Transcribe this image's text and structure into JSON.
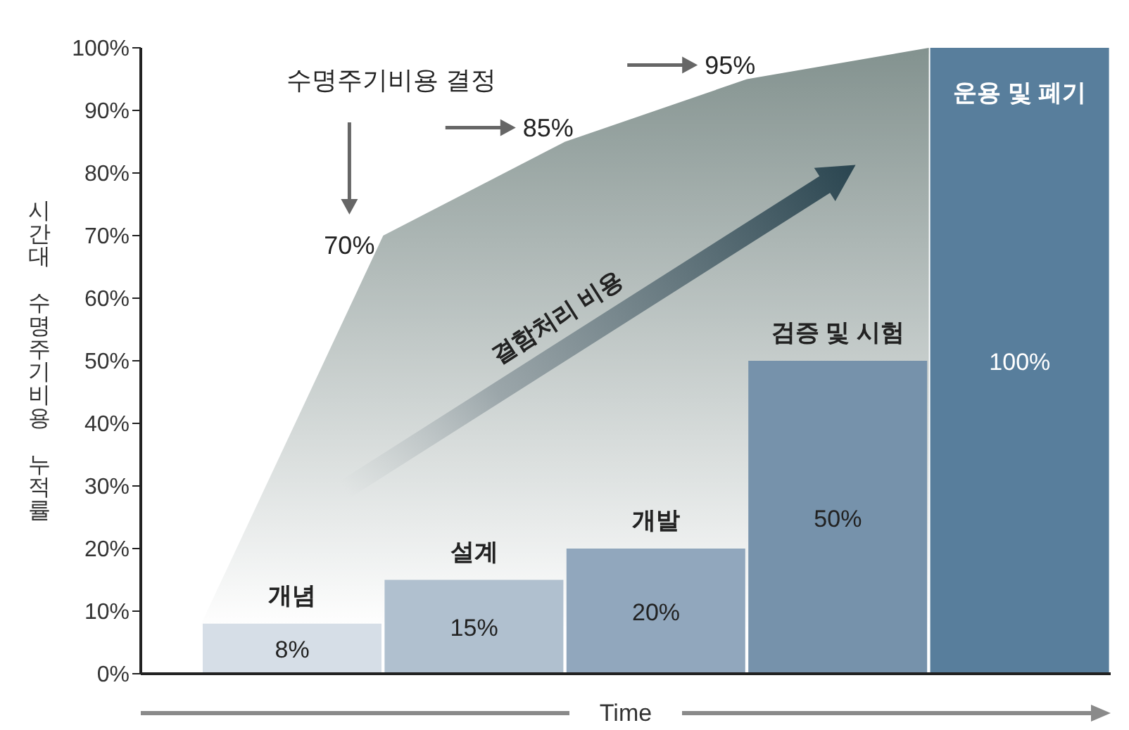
{
  "chart_data": {
    "type": "bar",
    "categories": [
      null,
      null,
      null,
      null,
      null
    ],
    "series": [
      {
        "type": "bar",
        "name": "개념",
        "color": "#d6dee7",
        "values": [
          8,
          null,
          null,
          null,
          null
        ],
        "value_labels": [
          "8%",
          null,
          null,
          null,
          null
        ]
      },
      {
        "name": "설계",
        "color": "#b0c0cf",
        "values": [
          null,
          15,
          null,
          null,
          null
        ],
        "value_labels": [
          null,
          "15%",
          null,
          null,
          null
        ]
      },
      {
        "name": "개발",
        "color": "#91a7bd",
        "values": [
          null,
          null,
          20,
          null,
          null
        ],
        "value_labels": [
          null,
          null,
          "20%",
          null,
          null
        ]
      },
      {
        "name": "검증 및 시험",
        "color": "#7692ab",
        "values": [
          null,
          null,
          null,
          50,
          null
        ],
        "value_labels": [
          null,
          null,
          null,
          "50%",
          null
        ]
      },
      {
        "name": "운용 및 폐기",
        "color": "#587e9c",
        "values": [
          null,
          null,
          null,
          null,
          100
        ],
        "value_labels": [
          null,
          null,
          null,
          null,
          "100%"
        ]
      },
      {
        "type": "area",
        "name": "수명주기비용 결정",
        "color": "#83928f",
        "values": [
          8,
          70,
          85,
          95,
          100
        ],
        "value_labels": [
          null,
          "70%",
          "85%",
          "95%",
          null
        ]
      }
    ],
    "ylim": [
      0,
      100
    ],
    "yticks": [
      {
        "value": 0,
        "label": "0%"
      },
      {
        "value": 10,
        "label": "10%"
      },
      {
        "value": 20,
        "label": "20%"
      },
      {
        "value": 30,
        "label": "30%"
      },
      {
        "value": 40,
        "label": "40%"
      },
      {
        "value": 50,
        "label": "50%"
      },
      {
        "value": 60,
        "label": "60%"
      },
      {
        "value": 70,
        "label": "70%"
      },
      {
        "value": 80,
        "label": "80%"
      },
      {
        "value": 90,
        "label": "90%"
      },
      {
        "value": 100,
        "label": "100%"
      }
    ],
    "xlabel": "Time",
    "ylabel": "시간대 수명주기비용 누적률",
    "annotations": [
      "결함처리 비용"
    ]
  }
}
